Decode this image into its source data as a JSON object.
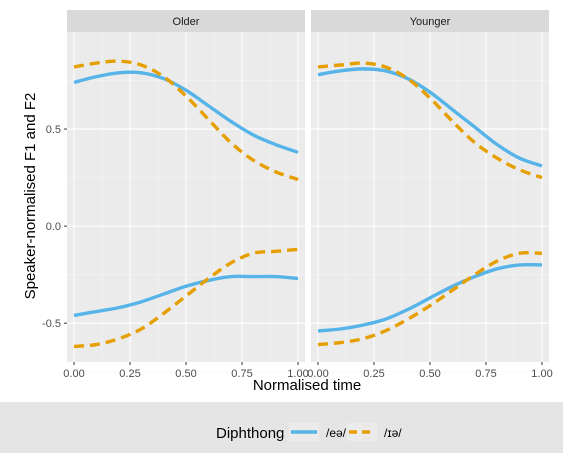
{
  "chart_data": {
    "type": "line",
    "ylabel": "Speaker-normalised F1 and F2",
    "xlabel": "Normalised time",
    "xlim": [
      0,
      1
    ],
    "ylim": [
      -0.7,
      1.0
    ],
    "x_ticks": [
      "0.00",
      "0.25",
      "0.50",
      "0.75",
      "1.00"
    ],
    "x_tick_values": [
      0,
      0.25,
      0.5,
      0.75,
      1.0
    ],
    "y_ticks": [
      "-0.5",
      "0.0",
      "0.5"
    ],
    "y_tick_values": [
      -0.5,
      0,
      0.5
    ],
    "grid": true,
    "legend": {
      "title": "Diphthong",
      "position": "bottom",
      "entries": [
        {
          "label": "/eə/",
          "color": "#56b4e9",
          "dash": "solid"
        },
        {
          "label": "/ɪə/",
          "color": "#e69f00",
          "dash": "dashed"
        }
      ]
    },
    "panels": [
      {
        "title": "Older",
        "series": [
          {
            "name": "/eə/",
            "formant": "F2",
            "x": [
              0,
              0.1,
              0.2,
              0.3,
              0.4,
              0.5,
              0.6,
              0.7,
              0.8,
              0.9,
              1.0
            ],
            "y": [
              0.74,
              0.77,
              0.79,
              0.79,
              0.76,
              0.7,
              0.62,
              0.54,
              0.47,
              0.42,
              0.38
            ]
          },
          {
            "name": "/ɪə/",
            "formant": "F2",
            "x": [
              0,
              0.1,
              0.2,
              0.3,
              0.4,
              0.5,
              0.6,
              0.7,
              0.8,
              0.9,
              1.0
            ],
            "y": [
              0.82,
              0.84,
              0.85,
              0.83,
              0.77,
              0.67,
              0.55,
              0.43,
              0.34,
              0.28,
              0.24
            ]
          },
          {
            "name": "/eə/",
            "formant": "F1",
            "x": [
              0,
              0.1,
              0.2,
              0.3,
              0.4,
              0.5,
              0.6,
              0.7,
              0.8,
              0.9,
              1.0
            ],
            "y": [
              -0.46,
              -0.44,
              -0.42,
              -0.39,
              -0.35,
              -0.31,
              -0.28,
              -0.26,
              -0.26,
              -0.26,
              -0.27
            ]
          },
          {
            "name": "/ɪə/",
            "formant": "F1",
            "x": [
              0,
              0.1,
              0.2,
              0.3,
              0.4,
              0.5,
              0.6,
              0.7,
              0.8,
              0.9,
              1.0
            ],
            "y": [
              -0.62,
              -0.61,
              -0.58,
              -0.53,
              -0.45,
              -0.36,
              -0.27,
              -0.19,
              -0.14,
              -0.13,
              -0.12
            ]
          }
        ]
      },
      {
        "title": "Younger",
        "series": [
          {
            "name": "/eə/",
            "formant": "F2",
            "x": [
              0,
              0.1,
              0.2,
              0.3,
              0.4,
              0.5,
              0.6,
              0.7,
              0.8,
              0.9,
              1.0
            ],
            "y": [
              0.78,
              0.8,
              0.81,
              0.8,
              0.76,
              0.69,
              0.6,
              0.51,
              0.42,
              0.35,
              0.31
            ]
          },
          {
            "name": "/ɪə/",
            "formant": "F2",
            "x": [
              0,
              0.1,
              0.2,
              0.3,
              0.4,
              0.5,
              0.6,
              0.7,
              0.8,
              0.9,
              1.0
            ],
            "y": [
              0.82,
              0.83,
              0.84,
              0.82,
              0.76,
              0.66,
              0.54,
              0.43,
              0.35,
              0.29,
              0.25
            ]
          },
          {
            "name": "/eə/",
            "formant": "F1",
            "x": [
              0,
              0.1,
              0.2,
              0.3,
              0.4,
              0.5,
              0.6,
              0.7,
              0.8,
              0.9,
              1.0
            ],
            "y": [
              -0.54,
              -0.53,
              -0.51,
              -0.48,
              -0.43,
              -0.37,
              -0.31,
              -0.26,
              -0.22,
              -0.2,
              -0.2
            ]
          },
          {
            "name": "/ɪə/",
            "formant": "F1",
            "x": [
              0,
              0.1,
              0.2,
              0.3,
              0.4,
              0.5,
              0.6,
              0.7,
              0.8,
              0.9,
              1.0
            ],
            "y": [
              -0.61,
              -0.6,
              -0.58,
              -0.54,
              -0.48,
              -0.41,
              -0.33,
              -0.25,
              -0.18,
              -0.14,
              -0.14
            ]
          }
        ]
      }
    ]
  }
}
